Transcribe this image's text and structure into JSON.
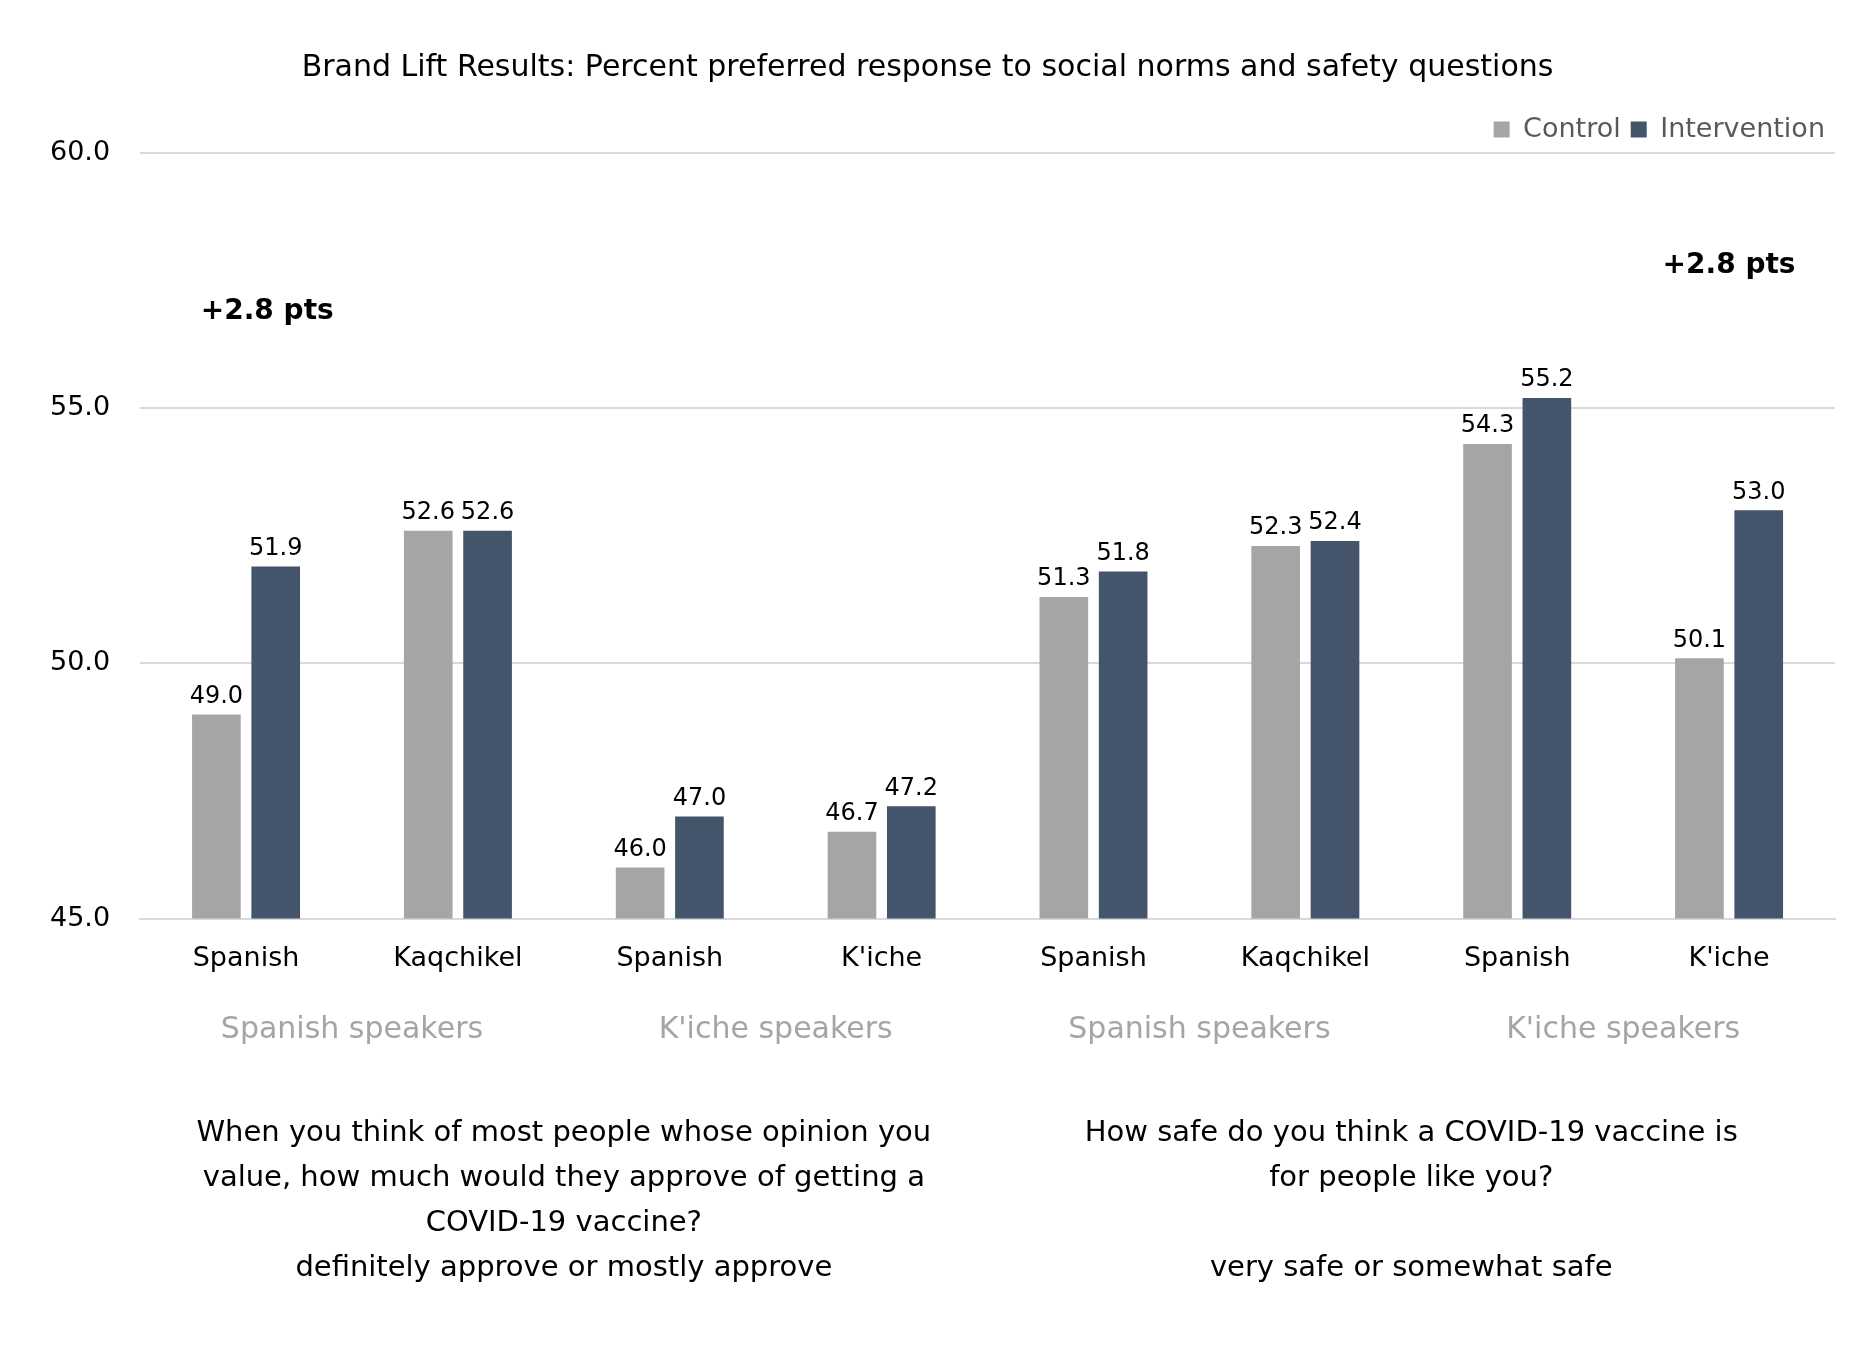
{
  "chart_data": {
    "type": "bar",
    "title": "Brand Lift Results: Percent preferred response to social norms and safety questions",
    "categories": [
      "Spanish",
      "Kaqchikel",
      "Spanish",
      "K'iche",
      "Spanish",
      "Kaqchikel",
      "Spanish",
      "K'iche"
    ],
    "series": [
      {
        "name": "Control",
        "color": "#a5a5a5",
        "values": [
          49.0,
          52.6,
          46.0,
          46.7,
          51.3,
          52.3,
          54.3,
          50.1
        ],
        "value_labels": [
          "49.0",
          "52.6",
          "46.0",
          "46.7",
          "51.3",
          "52.3",
          "54.3",
          "50.1"
        ]
      },
      {
        "name": "Intervention",
        "color": "#44546a",
        "values": [
          51.9,
          52.6,
          47.0,
          47.2,
          51.8,
          52.4,
          55.2,
          53.0
        ],
        "value_labels": [
          "51.9",
          "52.6",
          "47.0",
          "47.2",
          "51.8",
          "52.4",
          "55.2",
          "53.0"
        ]
      }
    ],
    "ylim": [
      45,
      60
    ],
    "yticks": [
      {
        "value": 45,
        "label": "45.0"
      },
      {
        "value": 50,
        "label": "50.0"
      },
      {
        "value": 55,
        "label": "55.0"
      },
      {
        "value": 60,
        "label": "60.0"
      }
    ],
    "grid": "y",
    "legend": "top right",
    "annotations": [
      "+2.8 pts",
      "+2.8 pts",
      "Spanish speakers",
      "K'iche speakers",
      "Spanish speakers",
      "K'iche speakers",
      "When you think of most people whose opinion you value, how much would they approve of getting a COVID-19 vaccine?",
      "definitely approve or mostly approve",
      "How safe do you think a COVID-19 vaccine is for people like you?",
      "very safe or somewhat safe"
    ]
  }
}
